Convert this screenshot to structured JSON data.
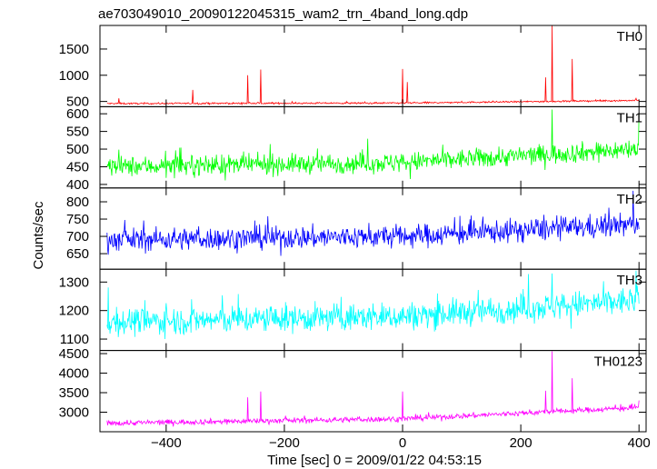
{
  "chart_data": {
    "type": "line",
    "title": "ae703049010_20090122045315_wam2_trn_4band_long.qdp",
    "xlabel": "Time [sec] 0 = 2009/01/22 04:53:15",
    "ylabel": "Counts/sec",
    "xlim": [
      -512,
      412
    ],
    "x_ticks": [
      -400,
      -200,
      0,
      200,
      400
    ],
    "x_tick_labels": [
      "−400",
      "−200",
      "0",
      "200",
      "400"
    ],
    "panels": [
      {
        "name": "TH0",
        "color": "#ff0000",
        "ylim": [
          400,
          1950
        ],
        "y_ticks": [
          500,
          1000,
          1500
        ],
        "y_tick_labels": [
          "500",
          "1000",
          "1500"
        ],
        "baseline": [
          [
            -500,
            460
          ],
          [
            0,
            470
          ],
          [
            400,
            520
          ]
        ],
        "noise": 30,
        "spikes": [
          [
            -480,
            560
          ],
          [
            -355,
            720
          ],
          [
            -262,
            1000
          ],
          [
            -240,
            1110
          ],
          [
            0,
            1120
          ],
          [
            8,
            870
          ],
          [
            242,
            960
          ],
          [
            253,
            1950
          ],
          [
            287,
            1310
          ],
          [
            395,
            560
          ]
        ]
      },
      {
        "name": "TH1",
        "color": "#00ff00",
        "ylim": [
          390,
          620
        ],
        "y_ticks": [
          400,
          450,
          500,
          550,
          600
        ],
        "y_tick_labels": [
          "400",
          "450",
          "500",
          "550",
          "600"
        ],
        "baseline": [
          [
            -500,
            450
          ],
          [
            0,
            462
          ],
          [
            400,
            500
          ]
        ],
        "noise": 55,
        "spikes": [
          [
            253,
            612
          ],
          [
            400,
            598
          ]
        ]
      },
      {
        "name": "TH2",
        "color": "#0000ff",
        "ylim": [
          605,
          840
        ],
        "y_ticks": [
          650,
          700,
          750,
          800
        ],
        "y_tick_labels": [
          "650",
          "700",
          "750",
          "800"
        ],
        "baseline": [
          [
            -500,
            690
          ],
          [
            0,
            700
          ],
          [
            400,
            735
          ]
        ],
        "noise": 65,
        "spikes": [
          [
            390,
            832
          ]
        ]
      },
      {
        "name": "TH3",
        "color": "#00ffff",
        "ylim": [
          1060,
          1345
        ],
        "y_ticks": [
          1100,
          1200,
          1300
        ],
        "y_tick_labels": [
          "1100",
          "1200",
          "1300"
        ],
        "baseline": [
          [
            -500,
            1160
          ],
          [
            0,
            1180
          ],
          [
            400,
            1235
          ]
        ],
        "noise": 95,
        "spikes": [
          [
            253,
            1330
          ],
          [
            395,
            1340
          ]
        ]
      },
      {
        "name": "TH0123",
        "color": "#ff00ff",
        "ylim": [
          2500,
          4580
        ],
        "y_ticks": [
          3000,
          3500,
          4000,
          4500
        ],
        "y_tick_labels": [
          "3000",
          "3500",
          "4000",
          "4500"
        ],
        "baseline": [
          [
            -500,
            2720
          ],
          [
            0,
            2830
          ],
          [
            400,
            3120
          ]
        ],
        "noise": 140,
        "spikes": [
          [
            -262,
            3380
          ],
          [
            -240,
            3530
          ],
          [
            0,
            3530
          ],
          [
            242,
            3550
          ],
          [
            253,
            4560
          ],
          [
            287,
            3870
          ],
          [
            400,
            3300
          ]
        ]
      }
    ],
    "grid": false,
    "legend": "none"
  }
}
